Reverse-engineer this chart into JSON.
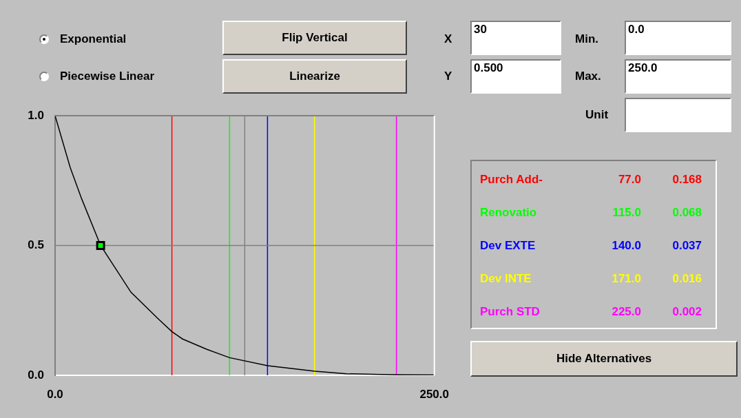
{
  "chart_data": {
    "type": "line",
    "xlim": [
      0,
      250
    ],
    "ylim": [
      0,
      1
    ],
    "xticks": [
      {
        "value": 0,
        "label": "0.0"
      },
      {
        "value": 250,
        "label": "250.0"
      }
    ],
    "yticks": [
      {
        "value": 0,
        "label": "0.0"
      },
      {
        "value": 0.5,
        "label": "0.5"
      },
      {
        "value": 1,
        "label": "1.0"
      }
    ],
    "legend": false,
    "series": [
      {
        "color": "#000000",
        "marker": "none",
        "x": [
          0,
          10,
          17.5,
          30,
          50,
          67.5,
          77,
          84,
          100,
          115,
          140,
          171,
          192,
          225,
          250
        ],
        "values": [
          1.0,
          0.8,
          0.68,
          0.5,
          0.32,
          0.22,
          0.168,
          0.14,
          0.1,
          0.068,
          0.037,
          0.016,
          0.006,
          0.002,
          0.001
        ]
      },
      {
        "type": "scatter",
        "color": "#00ff00",
        "marker": "square",
        "x": [
          30
        ],
        "values": [
          0.5
        ]
      }
    ],
    "ref_lines": [
      {
        "axis": "x",
        "value": 77,
        "label": "Purch Add-",
        "color": "#ff0000"
      },
      {
        "axis": "x",
        "value": 115,
        "label": "Renovatio",
        "color": "#00ff00"
      },
      {
        "axis": "x",
        "value": 140,
        "label": "Dev EXTE",
        "color": "#0000ff"
      },
      {
        "axis": "x",
        "value": 171,
        "label": "Dev INTE",
        "color": "#ffff00"
      },
      {
        "axis": "x",
        "value": 225,
        "label": "Purch STD",
        "color": "#ff00ff"
      },
      {
        "axis": "x",
        "value": 125,
        "color": "#808080"
      },
      {
        "axis": "y",
        "value": 0.5,
        "color": "#808080"
      }
    ],
    "annotations": [
      "Exponential",
      "Piecewise Linear",
      "Flip Vertical",
      "Linearize",
      "X",
      "30",
      "Y",
      "0.500",
      "Min.",
      "0.0",
      "Max.",
      "250.0",
      "Unit",
      "Hide Alternatives",
      "77.0",
      "0.168",
      "115.0",
      "0.068",
      "140.0",
      "0.037",
      "171.0",
      "0.016",
      "225.0",
      "0.002"
    ]
  }
}
